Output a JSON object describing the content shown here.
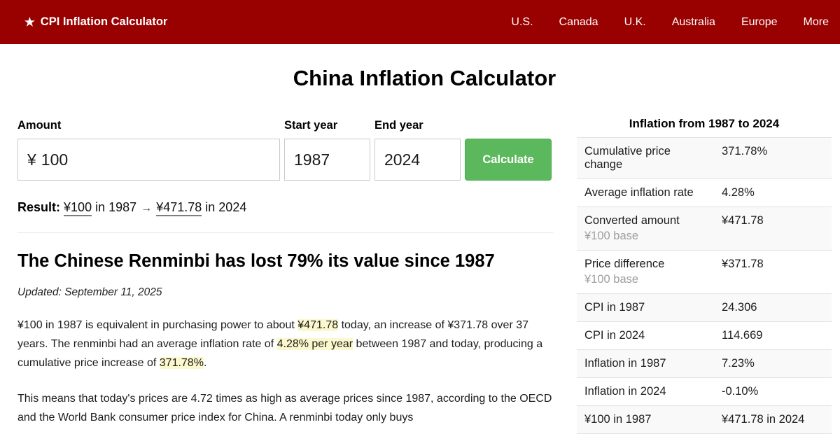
{
  "colors": {
    "navbar_bg": "#990100",
    "button_green": "#5cb85c",
    "highlight_yellow": "#fcf8cd",
    "row_stripe": "#f9f9f9"
  },
  "navbar": {
    "brand_icon": "★",
    "brand": "CPI Inflation Calculator",
    "items": [
      {
        "label": "U.S."
      },
      {
        "label": "Canada"
      },
      {
        "label": "U.K."
      },
      {
        "label": "Australia"
      },
      {
        "label": "Europe"
      },
      {
        "label": "More"
      }
    ]
  },
  "page": {
    "title": "China Inflation Calculator"
  },
  "form": {
    "amount_label": "Amount",
    "currency_prefix": "¥",
    "amount_value": "100",
    "start_year_label": "Start year",
    "start_year_value": "1987",
    "end_year_label": "End year",
    "end_year_value": "2024",
    "calculate_label": "Calculate"
  },
  "result": {
    "prefix": "Result:",
    "from_amount": "¥100",
    "in_start": "in 1987",
    "arrow": "→",
    "to_amount": "¥471.78",
    "in_end": "in 2024"
  },
  "article": {
    "heading": "The Chinese Renminbi has lost 79% its value since 1987",
    "updated": "Updated: September 11, 2025",
    "p1_segments": [
      {
        "text": "¥100 in 1987 is equivalent in purchasing power to about "
      },
      {
        "text": "¥471.78",
        "highlight": true
      },
      {
        "text": " today, an increase of ¥371.78 over 37 years. The renminbi had an average inflation rate of "
      },
      {
        "text": "4.28% per year",
        "highlight": true
      },
      {
        "text": " between 1987 and today, producing a cumulative price increase of "
      },
      {
        "text": "371.78%",
        "highlight": true
      },
      {
        "text": "."
      }
    ],
    "p2": "This means that today's prices are 4.72 times as high as average prices since 1987, according to the OECD and the World Bank consumer price index for China. A renminbi today only buys"
  },
  "summary": {
    "title": "Inflation from 1987 to 2024",
    "rows": [
      {
        "label": "Cumulative price change",
        "value": "371.78%"
      },
      {
        "label": "Average inflation rate",
        "value": "4.28%"
      },
      {
        "label": "Converted amount",
        "sub": "¥100 base",
        "value": "¥471.78"
      },
      {
        "label": "Price difference",
        "sub": "¥100 base",
        "value": "¥371.78"
      },
      {
        "label": "CPI in 1987",
        "value": "24.306"
      },
      {
        "label": "CPI in 2024",
        "value": "114.669"
      },
      {
        "label": "Inflation in 1987",
        "value": "7.23%"
      },
      {
        "label": "Inflation in 2024",
        "value": "-0.10%"
      },
      {
        "label": "¥100 in 1987",
        "value": "¥471.78 in 2024"
      }
    ]
  }
}
